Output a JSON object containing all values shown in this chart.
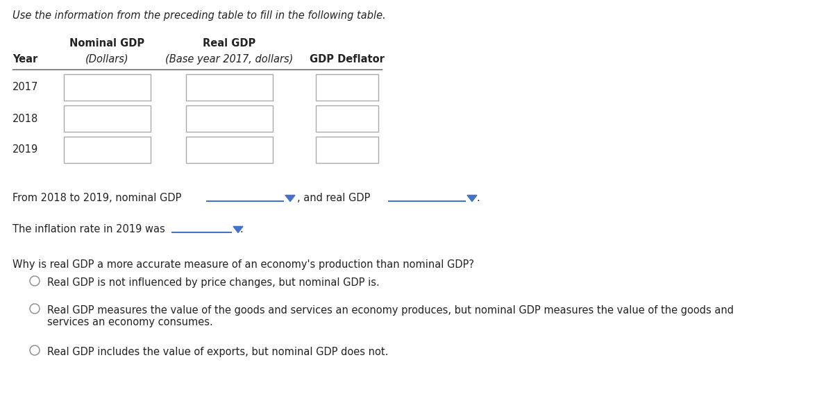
{
  "title_text": "Use the information from the preceding table to fill in the following table.",
  "rows": [
    "2017",
    "2018",
    "2019"
  ],
  "sentence1_prefix": "From 2018 to 2019, nominal GDP",
  "sentence1_mid": ", and real GDP",
  "sentence1_end": ".",
  "sentence2_prefix": "The inflation rate in 2019 was",
  "sentence2_end": ".",
  "question": "Why is real GDP a more accurate measure of an economy's production than nominal GDP?",
  "options": [
    "Real GDP is not influenced by price changes, but nominal GDP is.",
    "Real GDP measures the value of the goods and services an economy produces, but nominal GDP measures the value of the goods and\nservices an economy consumes.",
    "Real GDP includes the value of exports, but nominal GDP does not."
  ],
  "bg_color": "#ffffff",
  "text_color": "#222222",
  "box_edge_color": "#aaaaaa",
  "dropdown_color": "#4472c4",
  "radio_color": "#888888",
  "title_fontsize": 10.5,
  "body_fontsize": 10.5,
  "header_fontsize": 10.5
}
